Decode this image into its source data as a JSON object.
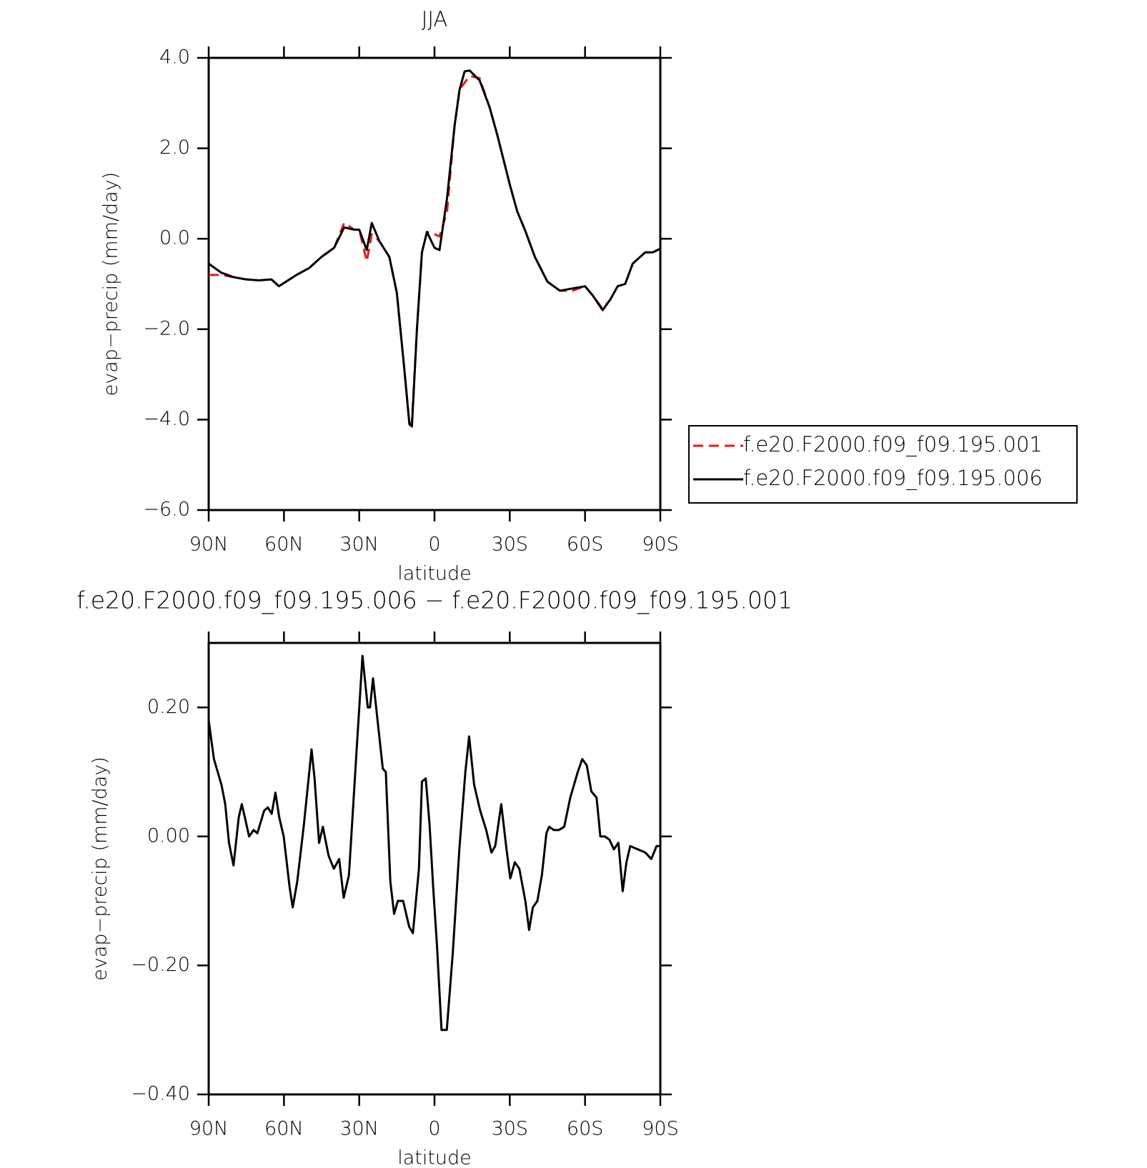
{
  "chart_data": [
    {
      "type": "line",
      "title": "JJA",
      "xlabel": "latitude",
      "ylabel": "evap−precip (mm/day)",
      "x": [
        90,
        85,
        80,
        75,
        70,
        65,
        62,
        55,
        50,
        45,
        40,
        36,
        32,
        30,
        27,
        25,
        22,
        18,
        15,
        12,
        10,
        9,
        7,
        5,
        3,
        0,
        -2,
        -5,
        -8,
        -10,
        -12,
        -14,
        -18,
        -22,
        -25,
        -30,
        -33,
        -36,
        -40,
        -45,
        -50,
        -55,
        -60,
        -63,
        -67,
        -70,
        -73,
        -76,
        -79,
        -84,
        -87,
        -90
      ],
      "series": [
        {
          "name": "f.e20.F2000.f09_f09.195.001",
          "color": "#e41a1c",
          "style": "dashed",
          "values": [
            -0.8,
            -0.8,
            -0.85,
            -0.9,
            -0.92,
            -0.9,
            -1.05,
            -0.8,
            -0.65,
            -0.4,
            -0.2,
            0.35,
            0.2,
            0.2,
            -0.5,
            0.1,
            -0.05,
            -0.4,
            -1.2,
            -2.9,
            -4.1,
            -4.05,
            -2.0,
            -0.3,
            0.15,
            0.1,
            0.05,
            0.6,
            2.5,
            3.3,
            3.45,
            3.6,
            3.55,
            2.9,
            2.3,
            1.2,
            0.6,
            0.2,
            -0.4,
            -0.95,
            -1.15,
            -1.15,
            -1.05,
            -1.25,
            -1.55,
            -1.35,
            -1.05,
            -1.0,
            -0.55,
            -0.3,
            -0.3,
            -0.22
          ]
        },
        {
          "name": "f.e20.F2000.f09_f09.195.006",
          "color": "#000000",
          "style": "solid",
          "values": [
            -0.55,
            -0.75,
            -0.85,
            -0.9,
            -0.92,
            -0.9,
            -1.05,
            -0.8,
            -0.65,
            -0.4,
            -0.2,
            0.25,
            0.2,
            0.2,
            -0.25,
            0.35,
            -0.05,
            -0.4,
            -1.2,
            -2.9,
            -4.1,
            -4.15,
            -2.0,
            -0.3,
            0.15,
            -0.2,
            -0.25,
            0.9,
            2.5,
            3.3,
            3.7,
            3.72,
            3.5,
            2.9,
            2.3,
            1.2,
            0.6,
            0.2,
            -0.4,
            -0.95,
            -1.15,
            -1.1,
            -1.05,
            -1.25,
            -1.58,
            -1.35,
            -1.05,
            -1.0,
            -0.55,
            -0.3,
            -0.3,
            -0.22
          ]
        }
      ],
      "xlim": [
        90,
        -90
      ],
      "xticks": [
        {
          "value": 90,
          "label": "90N"
        },
        {
          "value": 60,
          "label": "60N"
        },
        {
          "value": 30,
          "label": "30N"
        },
        0,
        {
          "value": -30,
          "label": "30S"
        },
        {
          "value": -60,
          "label": "60S"
        },
        {
          "value": -90,
          "label": "90S"
        }
      ],
      "ylim": [
        -6,
        4
      ],
      "yticks": [
        {
          "value": 4,
          "label": "4.0"
        },
        {
          "value": 2,
          "label": "2.0"
        },
        {
          "value": 0,
          "label": "0.0"
        },
        {
          "value": -2,
          "label": "−2.0"
        },
        {
          "value": -4,
          "label": "−4.0"
        },
        {
          "value": -6,
          "label": "−6.0"
        }
      ],
      "legend": "right"
    },
    {
      "type": "line",
      "title": "f.e20.F2000.f09_f09.195.006 − f.e20.F2000.f09_f09.195.001",
      "xlabel": "latitude",
      "ylabel": "evap−precip (mm/day)",
      "x": [
        90,
        87.9,
        84.9,
        83.4,
        81.9,
        80.1,
        78.0,
        76.8,
        75.6,
        73.9,
        72.1,
        70.6,
        67.9,
        66.4,
        64.9,
        63.4,
        61.9,
        60.1,
        57.7,
        56.5,
        54.7,
        52.0,
        49.0,
        47.8,
        46.0,
        44.5,
        42.2,
        40.1,
        38.0,
        36.2,
        34.1,
        31.1,
        28.7,
        26.6,
        25.7,
        24.5,
        22.7,
        20.6,
        19.4,
        17.6,
        16.1,
        14.6,
        12.5,
        10.1,
        8.6,
        6.2,
        5.0,
        3.5,
        2.0,
        0.5,
        -1.0,
        -2.8,
        -4.9,
        -7.3,
        -9.9,
        -12.3,
        -13.8,
        -15.8,
        -18.2,
        -20.6,
        -22.7,
        -24.2,
        -26.6,
        -28.7,
        -30.2,
        -32.0,
        -33.8,
        -36.2,
        -37.7,
        -39.2,
        -41.0,
        -42.8,
        -44.6,
        -45.7,
        -47.5,
        -49.6,
        -51.7,
        -54.1,
        -57.1,
        -58.9,
        -60.7,
        -62.5,
        -64.6,
        -66.1,
        -67.9,
        -69.7,
        -71.5,
        -73.3,
        -75.0,
        -76.5,
        -78.0,
        -81.0,
        -84.0,
        -86.4,
        -88.5,
        -90
      ],
      "series": [
        {
          "color": "#000000",
          "style": "solid",
          "values": [
            0.18,
            0.12,
            0.08,
            0.05,
            -0.01,
            -0.045,
            0.03,
            0.05,
            0.03,
            0.0,
            0.01,
            0.005,
            0.04,
            0.045,
            0.035,
            0.068,
            0.03,
            0.0,
            -0.08,
            -0.11,
            -0.07,
            0.02,
            0.135,
            0.09,
            -0.01,
            0.015,
            -0.03,
            -0.05,
            -0.035,
            -0.095,
            -0.06,
            0.13,
            0.28,
            0.2,
            0.2,
            0.245,
            0.18,
            0.105,
            0.1,
            -0.07,
            -0.12,
            -0.1,
            -0.1,
            -0.14,
            -0.15,
            -0.05,
            0.085,
            0.09,
            0.02,
            -0.08,
            -0.17,
            -0.3,
            -0.3,
            -0.18,
            -0.02,
            0.1,
            0.155,
            0.08,
            0.04,
            0.01,
            -0.025,
            -0.015,
            0.05,
            -0.02,
            -0.065,
            -0.04,
            -0.05,
            -0.1,
            -0.145,
            -0.11,
            -0.1,
            -0.06,
            0.005,
            0.015,
            0.01,
            0.01,
            0.015,
            0.06,
            0.1,
            0.12,
            0.11,
            0.07,
            0.06,
            0.0,
            0.0,
            -0.005,
            -0.02,
            -0.01,
            -0.085,
            -0.04,
            -0.015,
            -0.02,
            -0.025,
            -0.035,
            -0.015,
            -0.015
          ]
        }
      ],
      "xlim": [
        90,
        -90
      ],
      "xticks": [
        {
          "value": 90,
          "label": "90N"
        },
        {
          "value": 60,
          "label": "60N"
        },
        {
          "value": 30,
          "label": "30N"
        },
        0,
        {
          "value": -30,
          "label": "30S"
        },
        {
          "value": -60,
          "label": "60S"
        },
        {
          "value": -90,
          "label": "90S"
        }
      ],
      "ylim": [
        -0.4,
        0.3
      ],
      "yticks": [
        {
          "value": 0.2,
          "label": "0.20"
        },
        {
          "value": 0,
          "label": "0.00"
        },
        {
          "value": -0.2,
          "label": "−0.20"
        },
        {
          "value": -0.4,
          "label": "−0.40"
        }
      ]
    }
  ]
}
